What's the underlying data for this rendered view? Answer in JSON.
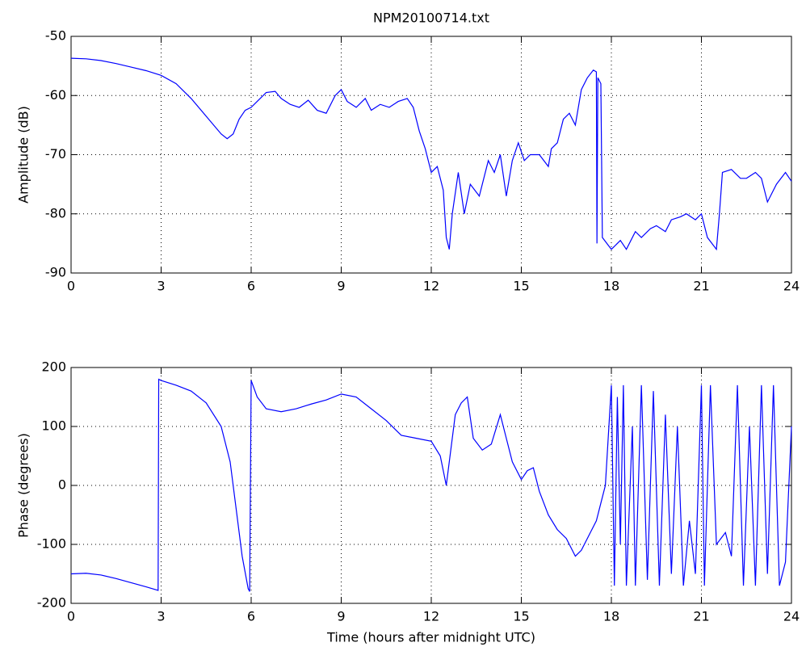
{
  "chart_data": [
    {
      "type": "line",
      "title": "NPM20100714.txt",
      "ylabel": "Amplitude (dB)",
      "color": "#0000ff",
      "grid": true,
      "xlim": [
        0,
        24
      ],
      "xticks": [
        0,
        3,
        6,
        9,
        12,
        15,
        18,
        21,
        24
      ],
      "ylim": [
        -90,
        -50
      ],
      "yticks": [
        -90,
        -80,
        -70,
        -60,
        -50
      ],
      "x": [
        0,
        0.5,
        1,
        1.5,
        2,
        2.5,
        3,
        3.5,
        4,
        4.5,
        5,
        5.2,
        5.4,
        5.6,
        5.8,
        6,
        6.2,
        6.5,
        6.8,
        7,
        7.3,
        7.6,
        7.9,
        8.2,
        8.5,
        8.8,
        9,
        9.2,
        9.5,
        9.8,
        10,
        10.3,
        10.6,
        10.9,
        11.2,
        11.4,
        11.6,
        11.8,
        12,
        12.2,
        12.4,
        12.5,
        12.6,
        12.7,
        12.9,
        13.1,
        13.3,
        13.6,
        13.9,
        14.1,
        14.3,
        14.5,
        14.7,
        14.9,
        15.1,
        15.3,
        15.6,
        15.9,
        16,
        16.2,
        16.4,
        16.6,
        16.8,
        17,
        17.2,
        17.4,
        17.5,
        17.52,
        17.55,
        17.65,
        17.7,
        18,
        18.3,
        18.5,
        18.8,
        19,
        19.3,
        19.5,
        19.8,
        20,
        20.3,
        20.5,
        20.8,
        21,
        21.2,
        21.5,
        21.6,
        21.7,
        22,
        22.3,
        22.5,
        22.8,
        23,
        23.2,
        23.5,
        23.8,
        24
      ],
      "values": [
        -53.7,
        -53.8,
        -54.1,
        -54.6,
        -55.2,
        -55.8,
        -56.6,
        -58,
        -60.5,
        -63.5,
        -66.5,
        -67.3,
        -66.5,
        -64,
        -62.5,
        -62,
        -61,
        -59.5,
        -59.3,
        -60.5,
        -61.5,
        -62,
        -60.8,
        -62.5,
        -63,
        -60,
        -59,
        -61,
        -62,
        -60.5,
        -62.5,
        -61.5,
        -62,
        -61,
        -60.5,
        -62,
        -66,
        -69,
        -73,
        -72,
        -76,
        -84,
        -86,
        -80,
        -73,
        -80,
        -75,
        -77,
        -71,
        -73,
        -70,
        -77,
        -71,
        -68,
        -71,
        -70,
        -70,
        -72,
        -69,
        -68,
        -64,
        -63,
        -65,
        -59,
        -57,
        -55.7,
        -56,
        -85,
        -57,
        -58,
        -84,
        -86,
        -84.5,
        -86,
        -83,
        -84,
        -82.5,
        -82,
        -83,
        -81,
        -80.5,
        -80,
        -81,
        -80,
        -84,
        -86,
        -80,
        -73,
        -72.5,
        -74,
        -74,
        -73,
        -74,
        -78,
        -75,
        -73,
        -74.5
      ]
    },
    {
      "type": "line",
      "ylabel": "Phase (degrees)",
      "xlabel": "Time (hours after midnight UTC)",
      "color": "#0000ff",
      "grid": true,
      "xlim": [
        0,
        24
      ],
      "xticks": [
        0,
        3,
        6,
        9,
        12,
        15,
        18,
        21,
        24
      ],
      "ylim": [
        -200,
        200
      ],
      "yticks": [
        -200,
        -100,
        0,
        100,
        200
      ],
      "x": [
        0,
        0.5,
        1,
        1.5,
        2,
        2.5,
        2.9,
        2.92,
        3,
        3.5,
        4,
        4.5,
        5,
        5.3,
        5.5,
        5.7,
        5.9,
        5.95,
        6,
        6.2,
        6.5,
        7,
        7.5,
        8,
        8.5,
        9,
        9.5,
        10,
        10.5,
        11,
        11.5,
        12,
        12.3,
        12.5,
        12.6,
        12.8,
        13,
        13.2,
        13.4,
        13.7,
        14,
        14.3,
        14.5,
        14.7,
        15,
        15.2,
        15.4,
        15.6,
        15.9,
        16.2,
        16.5,
        16.8,
        17,
        17.3,
        17.5,
        17.6,
        17.8,
        18,
        18.1,
        18.2,
        18.3,
        18.4,
        18.5,
        18.7,
        18.8,
        19,
        19.2,
        19.4,
        19.6,
        19.8,
        20,
        20.2,
        20.4,
        20.6,
        20.8,
        21,
        21.1,
        21.3,
        21.5,
        21.8,
        22,
        22.2,
        22.4,
        22.6,
        22.8,
        23,
        23.2,
        23.4,
        23.6,
        23.8,
        24
      ],
      "values": [
        -150,
        -149,
        -152,
        -158,
        -165,
        -172,
        -178,
        180,
        178,
        170,
        160,
        140,
        100,
        40,
        -40,
        -120,
        -175,
        -180,
        178,
        150,
        130,
        125,
        130,
        138,
        145,
        155,
        150,
        130,
        110,
        85,
        80,
        75,
        50,
        0,
        40,
        120,
        140,
        150,
        80,
        60,
        70,
        120,
        80,
        40,
        10,
        25,
        30,
        -10,
        -50,
        -75,
        -90,
        -120,
        -110,
        -80,
        -60,
        -40,
        0,
        170,
        -170,
        150,
        -100,
        170,
        -170,
        100,
        -170,
        170,
        -160,
        160,
        -170,
        120,
        -150,
        100,
        -170,
        -60,
        -150,
        170,
        -170,
        170,
        -100,
        -80,
        -120,
        170,
        -170,
        100,
        -170,
        170,
        -150,
        170,
        -170,
        -130,
        100
      ]
    }
  ]
}
